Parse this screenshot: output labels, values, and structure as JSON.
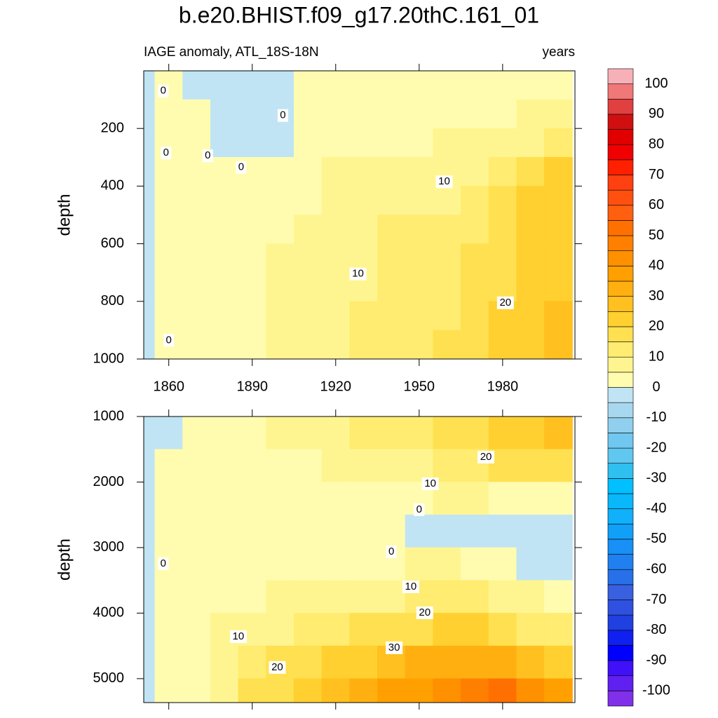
{
  "title": "b.e20.BHIST.f09_g17.20thC.161_01",
  "subtitle_left": "IAGE anomaly, ATL_18S-18N",
  "subtitle_right": "years",
  "colorbar": {
    "levels": [
      -100,
      -95,
      -90,
      -85,
      -80,
      -75,
      -70,
      -65,
      -60,
      -55,
      -50,
      -45,
      -40,
      -35,
      -30,
      -25,
      -20,
      -15,
      -10,
      -5,
      0,
      5,
      10,
      15,
      20,
      25,
      30,
      35,
      40,
      45,
      50,
      55,
      60,
      65,
      70,
      75,
      80,
      85,
      90,
      95,
      100
    ],
    "colors": [
      "#8030e8",
      "#6020f0",
      "#4010f8",
      "#0000ff",
      "#1020f0",
      "#2040e0",
      "#3050e0",
      "#3860e0",
      "#2870e8",
      "#2080f0",
      "#1890f5",
      "#10a0f8",
      "#10b0fa",
      "#08b8fa",
      "#00c0ff",
      "#30c0f0",
      "#60c8f0",
      "#70c8f0",
      "#90d0ee",
      "#a8d8f0",
      "#c0e4f4",
      "#fffcb0",
      "#fff590",
      "#ffec70",
      "#ffe050",
      "#ffd030",
      "#ffc020",
      "#ffb010",
      "#ffa000",
      "#ff9000",
      "#ff8000",
      "#ff7000",
      "#ff6010",
      "#ff5010",
      "#ff4010",
      "#ff2000",
      "#f00000",
      "#e00000",
      "#d01010",
      "#e04040",
      "#f07878",
      "#f8b0b8"
    ],
    "ticks": [
      -100,
      -90,
      -80,
      -70,
      -60,
      -50,
      -40,
      -30,
      -20,
      -10,
      0,
      10,
      20,
      30,
      40,
      50,
      60,
      70,
      80,
      90,
      100
    ]
  },
  "chart_data": [
    {
      "type": "contour",
      "ylabel": "depth",
      "xlim": [
        1851,
        2006
      ],
      "ylim": [
        0,
        1000
      ],
      "xticks": [
        1860,
        1890,
        1920,
        1950,
        1980
      ],
      "yticks": [
        200,
        400,
        600,
        800,
        1000
      ],
      "x": [
        1850,
        1860,
        1870,
        1880,
        1890,
        1900,
        1910,
        1920,
        1930,
        1940,
        1950,
        1960,
        1970,
        1980,
        1990,
        2000
      ],
      "y": [
        50,
        150,
        250,
        350,
        450,
        550,
        650,
        750,
        850,
        950
      ],
      "z": [
        [
          -2,
          1,
          -1,
          -1,
          -1,
          -1,
          1,
          2,
          2,
          2,
          2,
          2,
          3,
          3,
          4,
          4
        ],
        [
          -2,
          1,
          2,
          -1,
          -1,
          -1,
          2,
          3,
          3,
          3,
          3,
          3,
          4,
          5,
          6,
          7
        ],
        [
          -2,
          1,
          2,
          -1,
          -1,
          -1,
          3,
          4,
          5,
          5,
          5,
          6,
          7,
          8,
          10,
          12
        ],
        [
          -2,
          1,
          2,
          3,
          3,
          3,
          4,
          6,
          6,
          7,
          7,
          8,
          10,
          12,
          17,
          21
        ],
        [
          -2,
          1,
          2,
          3,
          3,
          4,
          5,
          7,
          8,
          10,
          10,
          10,
          13,
          16,
          21,
          24
        ],
        [
          -2,
          1,
          2,
          3,
          3,
          5,
          6,
          7,
          9,
          11,
          11,
          12,
          15,
          18,
          22,
          24
        ],
        [
          -2,
          1,
          2,
          3,
          4,
          6,
          6,
          8,
          10,
          11,
          12,
          13,
          16,
          19,
          23,
          25
        ],
        [
          -2,
          1,
          2,
          3,
          4,
          6,
          7,
          8,
          10,
          12,
          13,
          14,
          17,
          20,
          23,
          25
        ],
        [
          -2,
          1,
          2,
          3,
          4,
          6,
          7,
          9,
          11,
          13,
          14,
          15,
          18,
          21,
          24,
          26
        ],
        [
          -2,
          1,
          2,
          3,
          5,
          7,
          8,
          10,
          12,
          14,
          15,
          16,
          19,
          22,
          25,
          26
        ]
      ],
      "contour_labels": [
        {
          "value": 0,
          "x": 1858,
          "y": 70
        },
        {
          "value": 0,
          "x": 1901,
          "y": 155
        },
        {
          "value": 0,
          "x": 1859,
          "y": 285
        },
        {
          "value": 0,
          "x": 1874,
          "y": 295
        },
        {
          "value": 0,
          "x": 1886,
          "y": 335
        },
        {
          "value": 0,
          "x": 1860,
          "y": 935
        },
        {
          "value": 10,
          "x": 1959,
          "y": 385
        },
        {
          "value": 10,
          "x": 1928,
          "y": 705
        },
        {
          "value": 20,
          "x": 1981,
          "y": 805
        }
      ]
    },
    {
      "type": "contour",
      "ylabel": "depth",
      "xlim": [
        1851,
        2006
      ],
      "ylim": [
        1000,
        5365
      ],
      "xticks": [
        1860,
        1890,
        1920,
        1950,
        1980
      ],
      "yticks": [
        1000,
        2000,
        3000,
        4000,
        5000
      ],
      "x": [
        1850,
        1860,
        1870,
        1880,
        1890,
        1900,
        1910,
        1920,
        1930,
        1940,
        1950,
        1960,
        1970,
        1980,
        1990,
        2000
      ],
      "y": [
        1250,
        1750,
        2250,
        2750,
        3250,
        3750,
        4250,
        4750,
        5250
      ],
      "z": [
        [
          -2,
          0,
          2,
          3,
          5,
          6,
          7,
          9,
          11,
          13,
          15,
          18,
          20,
          21,
          24,
          26
        ],
        [
          -2,
          1,
          2,
          3,
          4,
          5,
          5,
          6,
          7,
          8,
          10,
          13,
          15,
          16,
          16,
          18
        ],
        [
          -2,
          1,
          2,
          2,
          2,
          3,
          3,
          3,
          4,
          4,
          5,
          6,
          6,
          5,
          5,
          5
        ],
        [
          -2,
          1,
          2,
          2,
          2,
          2,
          2,
          2,
          2,
          2,
          -1,
          -2,
          -2,
          -2,
          -2,
          -2
        ],
        [
          -2,
          1,
          2,
          3,
          3,
          4,
          4,
          4,
          5,
          5,
          6,
          6,
          4,
          1,
          -2,
          -2
        ],
        [
          -2,
          1,
          3,
          4,
          5,
          6,
          7,
          8,
          9,
          10,
          11,
          12,
          12,
          10,
          6,
          4
        ],
        [
          -2,
          1,
          3,
          6,
          8,
          10,
          12,
          14,
          16,
          18,
          20,
          22,
          22,
          20,
          15,
          12
        ],
        [
          -2,
          1,
          4,
          8,
          12,
          16,
          18,
          22,
          25,
          28,
          31,
          33,
          35,
          33,
          28,
          25
        ],
        [
          -2,
          1,
          5,
          10,
          16,
          20,
          24,
          28,
          32,
          36,
          40,
          44,
          48,
          52,
          45,
          40
        ]
      ],
      "contour_labels": [
        {
          "value": 0,
          "x": 1858,
          "y": 3246
        },
        {
          "value": 20,
          "x": 1974,
          "y": 1620
        },
        {
          "value": 10,
          "x": 1954,
          "y": 2027
        },
        {
          "value": 0,
          "x": 1950,
          "y": 2422
        },
        {
          "value": 0,
          "x": 1940,
          "y": 3064
        },
        {
          "value": 10,
          "x": 1947,
          "y": 3599
        },
        {
          "value": 20,
          "x": 1952,
          "y": 3995
        },
        {
          "value": 30,
          "x": 1941,
          "y": 4529
        },
        {
          "value": 10,
          "x": 1885,
          "y": 4358
        },
        {
          "value": 20,
          "x": 1899,
          "y": 4829
        }
      ]
    }
  ]
}
